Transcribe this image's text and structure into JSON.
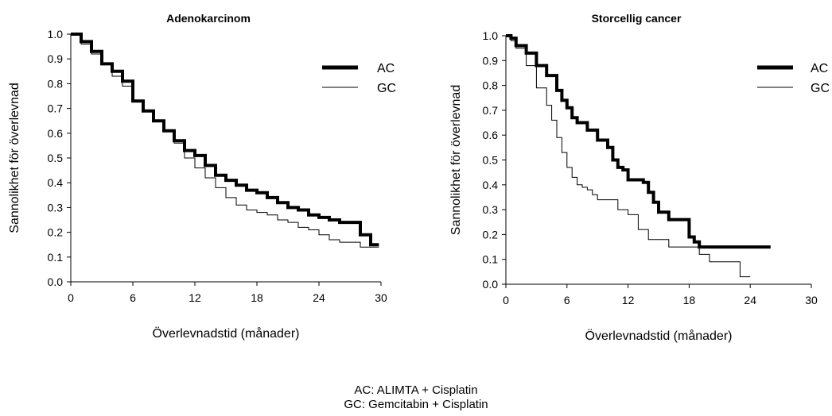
{
  "chart_data": [
    {
      "type": "line",
      "title": "Adenokarcinom",
      "xlabel": "Överlevnadstid (månader)",
      "ylabel": "Sannolikhet för överlevnad",
      "xlim": [
        0,
        30
      ],
      "ylim": [
        0,
        1.0
      ],
      "xticks": [
        "0",
        "6",
        "12",
        "18",
        "24",
        "30"
      ],
      "yticks": [
        "0.0",
        "0.1",
        "0.2",
        "0.3",
        "0.4",
        "0.5",
        "0.6",
        "0.7",
        "0.8",
        "0.9",
        "1.0"
      ],
      "legend_position": "top-right",
      "grid": false,
      "series": [
        {
          "name": "AC",
          "style": "thick",
          "x": [
            0,
            1,
            2,
            3,
            4,
            5,
            6,
            7,
            8,
            9,
            10,
            11,
            12,
            13,
            14,
            15,
            16,
            17,
            18,
            19,
            20,
            21,
            22,
            23,
            24,
            25,
            26,
            27,
            28,
            29,
            29.8
          ],
          "y": [
            1.0,
            0.97,
            0.93,
            0.88,
            0.85,
            0.81,
            0.73,
            0.69,
            0.65,
            0.61,
            0.57,
            0.53,
            0.51,
            0.47,
            0.43,
            0.41,
            0.39,
            0.37,
            0.36,
            0.34,
            0.32,
            0.3,
            0.29,
            0.27,
            0.26,
            0.25,
            0.24,
            0.24,
            0.19,
            0.15,
            0.15
          ]
        },
        {
          "name": "GC",
          "style": "thin",
          "x": [
            0,
            1,
            2,
            3,
            4,
            5,
            6,
            7,
            8,
            9,
            10,
            11,
            12,
            13,
            14,
            15,
            16,
            17,
            18,
            19,
            20,
            21,
            22,
            23,
            24,
            25,
            26,
            27,
            28,
            29,
            29.8
          ],
          "y": [
            1.0,
            0.96,
            0.92,
            0.88,
            0.83,
            0.79,
            0.73,
            0.69,
            0.65,
            0.61,
            0.56,
            0.5,
            0.46,
            0.42,
            0.38,
            0.34,
            0.31,
            0.29,
            0.28,
            0.27,
            0.25,
            0.24,
            0.22,
            0.21,
            0.19,
            0.17,
            0.16,
            0.16,
            0.14,
            0.14,
            0.14
          ]
        }
      ]
    },
    {
      "type": "line",
      "title": "Storcellig cancer",
      "xlabel": "Överlevnadstid (månader)",
      "ylabel": "Sannolikhet för överlevnad",
      "xlim": [
        0,
        30
      ],
      "ylim": [
        0,
        1.0
      ],
      "xticks": [
        "0",
        "6",
        "12",
        "18",
        "24",
        "30"
      ],
      "yticks": [
        "0.0",
        "0.1",
        "0.2",
        "0.3",
        "0.4",
        "0.5",
        "0.6",
        "0.7",
        "0.8",
        "0.9",
        "1.0"
      ],
      "legend_position": "top-right",
      "grid": false,
      "series": [
        {
          "name": "AC",
          "style": "thick",
          "x": [
            0,
            0.5,
            1,
            2,
            3,
            4,
            5,
            5.5,
            6,
            6.5,
            7,
            8,
            9,
            10,
            10.5,
            11,
            11.5,
            12,
            13,
            13.5,
            14,
            14.5,
            15,
            16,
            17,
            18,
            18.5,
            19,
            20,
            22,
            24,
            26
          ],
          "y": [
            1.0,
            0.99,
            0.96,
            0.93,
            0.88,
            0.84,
            0.78,
            0.74,
            0.71,
            0.67,
            0.65,
            0.62,
            0.58,
            0.55,
            0.5,
            0.47,
            0.46,
            0.42,
            0.42,
            0.41,
            0.37,
            0.33,
            0.29,
            0.26,
            0.26,
            0.19,
            0.17,
            0.15,
            0.15,
            0.15,
            0.15,
            0.15
          ]
        },
        {
          "name": "GC",
          "style": "thin",
          "x": [
            0,
            0.5,
            1,
            2,
            3,
            4,
            4.5,
            5,
            5.5,
            6,
            6.5,
            7,
            7.5,
            8,
            8.5,
            9,
            10,
            11,
            12,
            13,
            14,
            15,
            16,
            17,
            18,
            19,
            20,
            21,
            22,
            23,
            24
          ],
          "y": [
            1.0,
            0.98,
            0.95,
            0.88,
            0.79,
            0.72,
            0.66,
            0.59,
            0.53,
            0.47,
            0.43,
            0.4,
            0.39,
            0.38,
            0.36,
            0.34,
            0.34,
            0.3,
            0.28,
            0.22,
            0.18,
            0.18,
            0.15,
            0.15,
            0.15,
            0.12,
            0.09,
            0.09,
            0.09,
            0.03,
            0.03
          ]
        }
      ]
    }
  ],
  "footnote": {
    "line1": "AC: ALIMTA + Cisplatin",
    "line2": "GC: Gemcitabin + Cisplatin"
  }
}
